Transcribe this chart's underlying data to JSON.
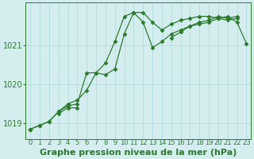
{
  "title": "Graphe pression niveau de la mer (hPa)",
  "x": [
    0,
    1,
    2,
    3,
    4,
    5,
    6,
    7,
    8,
    9,
    10,
    11,
    12,
    13,
    14,
    15,
    16,
    17,
    18,
    19,
    20,
    21,
    22,
    23
  ],
  "line1": [
    1018.85,
    1018.95,
    1019.05,
    1019.3,
    1019.5,
    1019.6,
    1019.85,
    1020.3,
    1020.55,
    1021.1,
    1021.75,
    1021.85,
    1021.85,
    1021.6,
    1021.4,
    1021.55,
    1021.65,
    1021.7,
    1021.75,
    1021.75,
    1021.7,
    1021.75,
    1021.6,
    1021.05
  ],
  "line2": [
    1018.85,
    1018.95,
    1019.05,
    1019.3,
    1019.45,
    1019.5,
    1020.3,
    1020.3,
    1020.25,
    1020.4,
    1021.3,
    1021.85,
    1021.6,
    1020.95,
    1021.1,
    1021.3,
    1021.4,
    1021.5,
    1021.55,
    1021.6,
    1021.7,
    1021.65,
    1021.7,
    null
  ],
  "line3": [
    1018.85,
    null,
    null,
    1019.25,
    1019.4,
    1019.4,
    null,
    null,
    null,
    null,
    null,
    null,
    null,
    null,
    null,
    1021.2,
    1021.35,
    1021.5,
    1021.6,
    1021.65,
    1021.75,
    1021.7,
    1021.75,
    null
  ],
  "bg_color": "#d4eef0",
  "grid_color": "#b0d8d8",
  "line_color": "#2d7a2d",
  "marker": "D",
  "marker_size": 2.5,
  "ylim": [
    1018.6,
    1022.1
  ],
  "yticks": [
    1019,
    1020,
    1021
  ],
  "tick_fontsize": 7,
  "label_fontsize": 8
}
